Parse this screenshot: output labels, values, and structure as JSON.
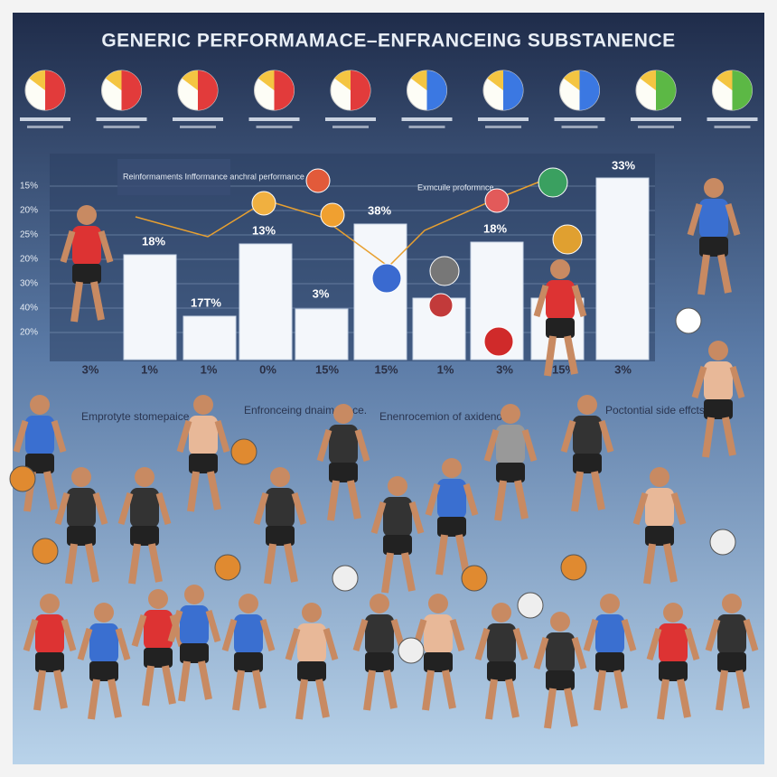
{
  "header": {
    "title": "GENERIC PERFORMAMACE–ENFRANCEING SUBSTANENCE"
  },
  "chart": {
    "yaxis_labels": [
      "15%",
      "20%",
      "25%",
      "20%",
      "30%",
      "40%",
      "20%"
    ],
    "bar_top_labels": [
      "18%",
      "17T%",
      "13%",
      "3%",
      "38%",
      "18%",
      "33%"
    ],
    "bottom_labels": [
      "3%",
      "1%",
      "1%",
      "0%",
      "15%",
      "15%",
      "1%",
      "3%",
      "15%",
      "3%"
    ],
    "annotations": [
      "Reinformaments Infformance anchral performance",
      "Exmcuile proformnce"
    ]
  },
  "callouts": [
    "Emprotyte stomepaice",
    "Enfronceing dnaimeance.",
    "Enenrocemion of axidenone.",
    "Poctontial side effcts"
  ]
}
